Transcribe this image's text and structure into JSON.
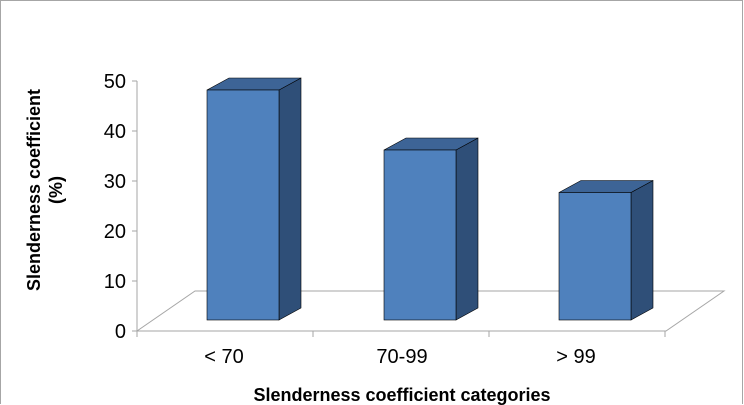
{
  "chart_data": {
    "type": "bar",
    "style": "3d-clustered-column",
    "categories": [
      "< 70",
      "70-99",
      "> 99"
    ],
    "values": [
      46,
      34,
      25.5
    ],
    "xlabel": "Slenderness coefficient categories",
    "ylabel_line1": "Slenderness coefficient",
    "ylabel_line2": "(%)",
    "ylim": [
      0,
      50
    ],
    "yticks": [
      "0",
      "10",
      "20",
      "30",
      "40",
      "50"
    ],
    "grid": false,
    "legend": "none",
    "colors": {
      "front": "#4f81bd",
      "side": "#2f4f78",
      "top": "#3d6496",
      "outline": "#000000"
    }
  }
}
